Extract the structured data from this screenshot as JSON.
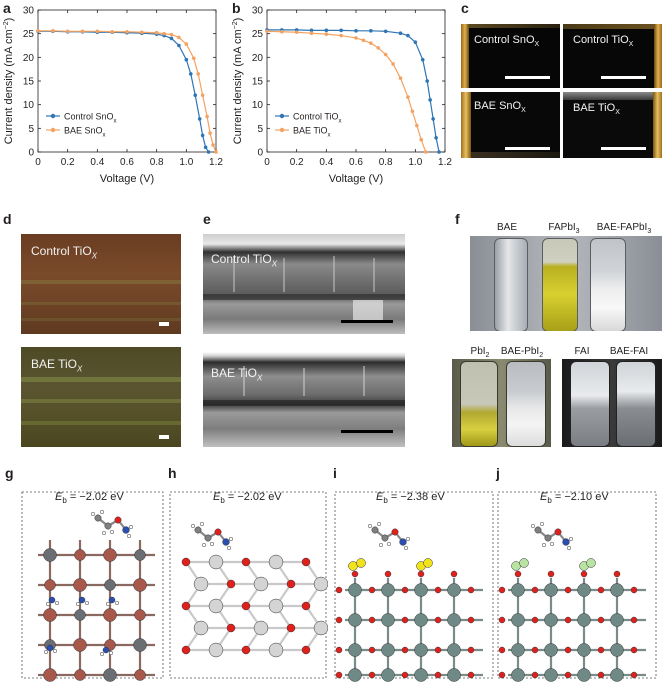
{
  "panel_labels": {
    "a": "a",
    "b": "b",
    "c": "c",
    "d": "d",
    "e": "e",
    "f": "f",
    "g": "g",
    "h": "h",
    "i": "i",
    "j": "j"
  },
  "chart_data": [
    {
      "type": "line",
      "panel": "a",
      "xlabel": "Voltage (V)",
      "ylabel": "Current density (mA cm−2)",
      "xlim": [
        0,
        1.2
      ],
      "ylim": [
        0,
        30
      ],
      "xticks": [
        "0",
        "0.2",
        "0.4",
        "0.6",
        "0.8",
        "1.0",
        "1.2"
      ],
      "yticks": [
        "0",
        "5",
        "10",
        "15",
        "20",
        "25",
        "30"
      ],
      "legend_position": "bottom-left",
      "series": [
        {
          "name": "Control SnOx",
          "color": "#2e75b6",
          "x": [
            0,
            0.1,
            0.2,
            0.3,
            0.4,
            0.5,
            0.6,
            0.7,
            0.8,
            0.85,
            0.9,
            0.95,
            1.0,
            1.03,
            1.06,
            1.09,
            1.11,
            1.13,
            1.15
          ],
          "y": [
            25.5,
            25.5,
            25.4,
            25.4,
            25.3,
            25.3,
            25.2,
            25.1,
            24.9,
            24.6,
            24.0,
            22.5,
            19.5,
            16.5,
            12.0,
            7.0,
            3.5,
            1.0,
            0.0
          ]
        },
        {
          "name": "BAE SnOx",
          "color": "#f4a261",
          "x": [
            0,
            0.1,
            0.2,
            0.3,
            0.4,
            0.5,
            0.6,
            0.7,
            0.8,
            0.85,
            0.9,
            0.95,
            1.0,
            1.05,
            1.08,
            1.11,
            1.14,
            1.16,
            1.18,
            1.2
          ],
          "y": [
            25.6,
            25.6,
            25.5,
            25.5,
            25.5,
            25.4,
            25.4,
            25.3,
            25.2,
            25.0,
            24.8,
            24.2,
            22.8,
            19.8,
            16.5,
            12.0,
            7.5,
            4.0,
            1.5,
            0.0
          ]
        }
      ]
    },
    {
      "type": "line",
      "panel": "b",
      "xlabel": "Voltage (V)",
      "ylabel": "Current density (mA cm−2)",
      "xlim": [
        0,
        1.2
      ],
      "ylim": [
        0,
        30
      ],
      "xticks": [
        "0",
        "0.2",
        "0.4",
        "0.6",
        "0.8",
        "1.0",
        "1.2"
      ],
      "yticks": [
        "0",
        "5",
        "10",
        "15",
        "20",
        "25",
        "30"
      ],
      "legend_position": "bottom-left",
      "series": [
        {
          "name": "Control TiOx",
          "color": "#2e75b6",
          "x": [
            0,
            0.1,
            0.2,
            0.3,
            0.4,
            0.5,
            0.6,
            0.7,
            0.8,
            0.9,
            0.95,
            1.0,
            1.05,
            1.08,
            1.1,
            1.12,
            1.14,
            1.16
          ],
          "y": [
            25.8,
            25.8,
            25.8,
            25.7,
            25.7,
            25.7,
            25.6,
            25.6,
            25.5,
            25.1,
            24.6,
            23.2,
            19.5,
            15.0,
            11.0,
            7.0,
            3.0,
            0.0
          ]
        },
        {
          "name": "BAE TiOx",
          "color": "#f4a261",
          "x": [
            0,
            0.1,
            0.2,
            0.3,
            0.4,
            0.5,
            0.6,
            0.65,
            0.7,
            0.75,
            0.8,
            0.85,
            0.9,
            0.95,
            0.98,
            1.01,
            1.04,
            1.07
          ],
          "y": [
            25.5,
            25.4,
            25.3,
            25.1,
            24.9,
            24.6,
            24.1,
            23.6,
            23.0,
            22.0,
            20.6,
            18.6,
            15.6,
            11.6,
            8.6,
            5.6,
            2.6,
            0.0
          ]
        }
      ]
    }
  ],
  "panel_c": {
    "captions": [
      "Control SnO",
      "Control TiO",
      "BAE SnO",
      "BAE TiO"
    ],
    "subscript": "X"
  },
  "panel_d": {
    "captions": [
      "Control TiO",
      "BAE TiO"
    ],
    "subscript": "X"
  },
  "panel_e": {
    "captions": [
      "Control TiO",
      "BAE TiO"
    ],
    "subscript": "X"
  },
  "panel_f": {
    "top_labels": [
      "BAE",
      "FAPbI",
      "BAE-FAPbI"
    ],
    "sub3": "3",
    "sub2": "2",
    "bottom_left_labels": [
      "PbI",
      "BAE-PbI"
    ],
    "bottom_right_labels": [
      "FAI",
      "BAE-FAI"
    ]
  },
  "panels_ghij": {
    "eb_symbol": "E",
    "eb_sub": "b",
    "eb_values": [
      "= −2.02 eV",
      "= −2.02 eV",
      "= −2.38 eV",
      "= −2.10 eV"
    ]
  },
  "colors": {
    "control": "#2e75b6",
    "bae": "#f4a261",
    "oxygen": "#e0201c",
    "titanium_grey": "#6f8a86",
    "tin_brown": "#a8584b",
    "iodine": "#f2e21a",
    "chlorine_green": "#b8e3a0",
    "nitrogen": "#2a4fb0"
  }
}
